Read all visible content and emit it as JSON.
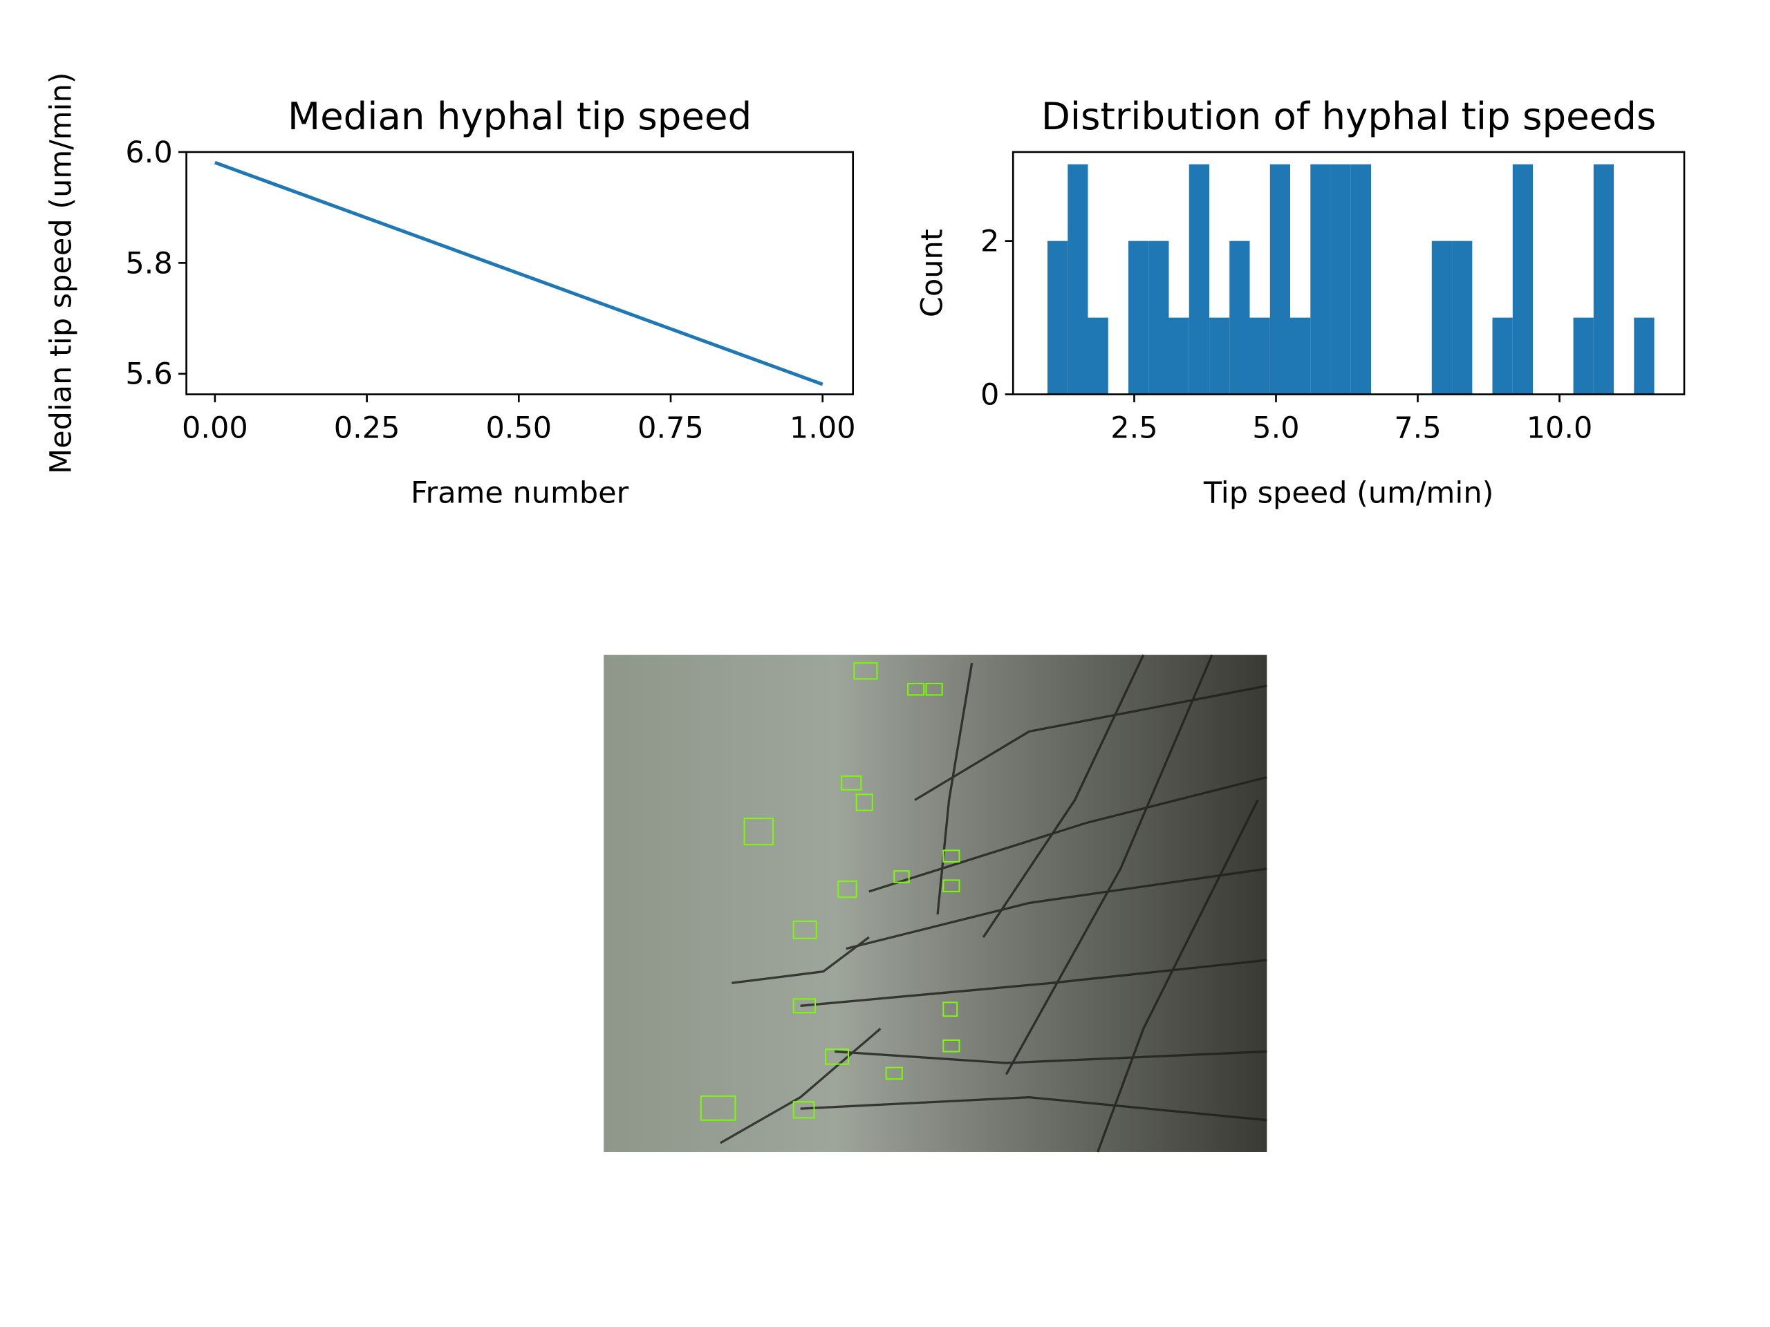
{
  "chart_data": [
    {
      "type": "line",
      "title": "Median hyphal tip speed",
      "xlabel": "Frame number",
      "ylabel": "Median tip speed (um/min)",
      "x": [
        0,
        1
      ],
      "values": [
        5.981,
        5.581
      ],
      "color": "#1f77b4",
      "xlim": [
        -0.047,
        1.05
      ],
      "ylim": [
        5.563,
        6.0
      ],
      "xticks": [
        {
          "value": 0,
          "label": "0.00"
        },
        0.25,
        {
          "value": 0.5,
          "label": "0.50"
        },
        0.75,
        {
          "value": 1,
          "label": "1.00"
        }
      ],
      "yticks": [
        5.6,
        5.8,
        {
          "value": 6,
          "label": "6.0"
        }
      ]
    },
    {
      "type": "histogram",
      "title": "Distribution of hyphal tip speeds",
      "xlabel": "Tip speed (um/min)",
      "ylabel": "Count",
      "bins": [
        0.97,
        1.327,
        1.683,
        2.04,
        2.397,
        2.754,
        3.11,
        3.467,
        3.824,
        4.18,
        4.537,
        4.894,
        5.25,
        5.607,
        5.964,
        6.321,
        6.677,
        7.034,
        7.391,
        7.747,
        8.104,
        8.461,
        8.817,
        9.174,
        9.531,
        9.888,
        10.244,
        10.601,
        10.958,
        11.314,
        11.671
      ],
      "values": [
        2,
        3,
        1,
        0,
        2,
        2,
        1,
        3,
        1,
        2,
        1,
        3,
        1,
        3,
        3,
        3,
        0,
        0,
        0,
        2,
        2,
        0,
        1,
        3,
        0,
        0,
        1,
        3,
        0,
        1
      ],
      "color": "#1f77b4",
      "xlim": [
        0.363,
        12.2
      ],
      "ylim": [
        0,
        3.16
      ],
      "xticks": [
        2.5,
        {
          "value": 5,
          "label": "5.0"
        },
        7.5,
        {
          "value": 10,
          "label": "10.0"
        }
      ],
      "yticks": [
        0,
        2
      ]
    }
  ]
}
